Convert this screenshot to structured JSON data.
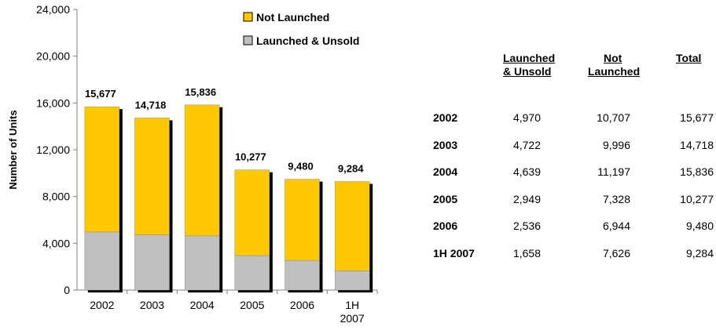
{
  "chart_data": {
    "type": "bar",
    "stacked": true,
    "categories": [
      [
        "2002"
      ],
      [
        "2003"
      ],
      [
        "2004"
      ],
      [
        "2005"
      ],
      [
        "2006"
      ],
      [
        "1H",
        "2007"
      ]
    ],
    "series": [
      {
        "name": "Launched & Unsold",
        "color": "#c0c0c0",
        "values": [
          4970,
          4722,
          4639,
          2949,
          2536,
          1658
        ]
      },
      {
        "name": "Not Launched",
        "color": "#ffc800",
        "values": [
          10707,
          9996,
          11197,
          7328,
          6944,
          7626
        ]
      }
    ],
    "totals": [
      "15,677",
      "14,718",
      "15,836",
      "10,277",
      "9,480",
      "9,284"
    ],
    "total_values": [
      15677,
      14718,
      15836,
      10277,
      9480,
      9284
    ],
    "ylabel": "Number of Units",
    "ylim": [
      0,
      24000
    ],
    "yticks": [
      0,
      4000,
      8000,
      12000,
      16000,
      20000,
      24000
    ],
    "ytick_labels": [
      "0",
      "4,000",
      "8,000",
      "12,000",
      "16,000",
      "20,000",
      "24,000"
    ],
    "legend": {
      "placement": "top-right",
      "entries": [
        "Not Launched",
        "Launched & Unsold"
      ]
    },
    "grid": false
  },
  "table": {
    "headers": {
      "launched_unsold": [
        "Launched",
        "& Unsold"
      ],
      "not_launched": [
        "Not",
        "Launched"
      ],
      "total": [
        "Total"
      ]
    },
    "rows": [
      {
        "label": "2002",
        "launched_unsold": "4,970",
        "not_launched": "10,707",
        "total": "15,677"
      },
      {
        "label": "2003",
        "launched_unsold": "4,722",
        "not_launched": "9,996",
        "total": "14,718"
      },
      {
        "label": "2004",
        "launched_unsold": "4,639",
        "not_launched": "11,197",
        "total": "15,836"
      },
      {
        "label": "2005",
        "launched_unsold": "2,949",
        "not_launched": "7,328",
        "total": "10,277"
      },
      {
        "label": "2006",
        "launched_unsold": "2,536",
        "not_launched": "6,944",
        "total": "9,480"
      },
      {
        "label": "1H 2007",
        "launched_unsold": "1,658",
        "not_launched": "7,626",
        "total": "9,284"
      }
    ]
  }
}
